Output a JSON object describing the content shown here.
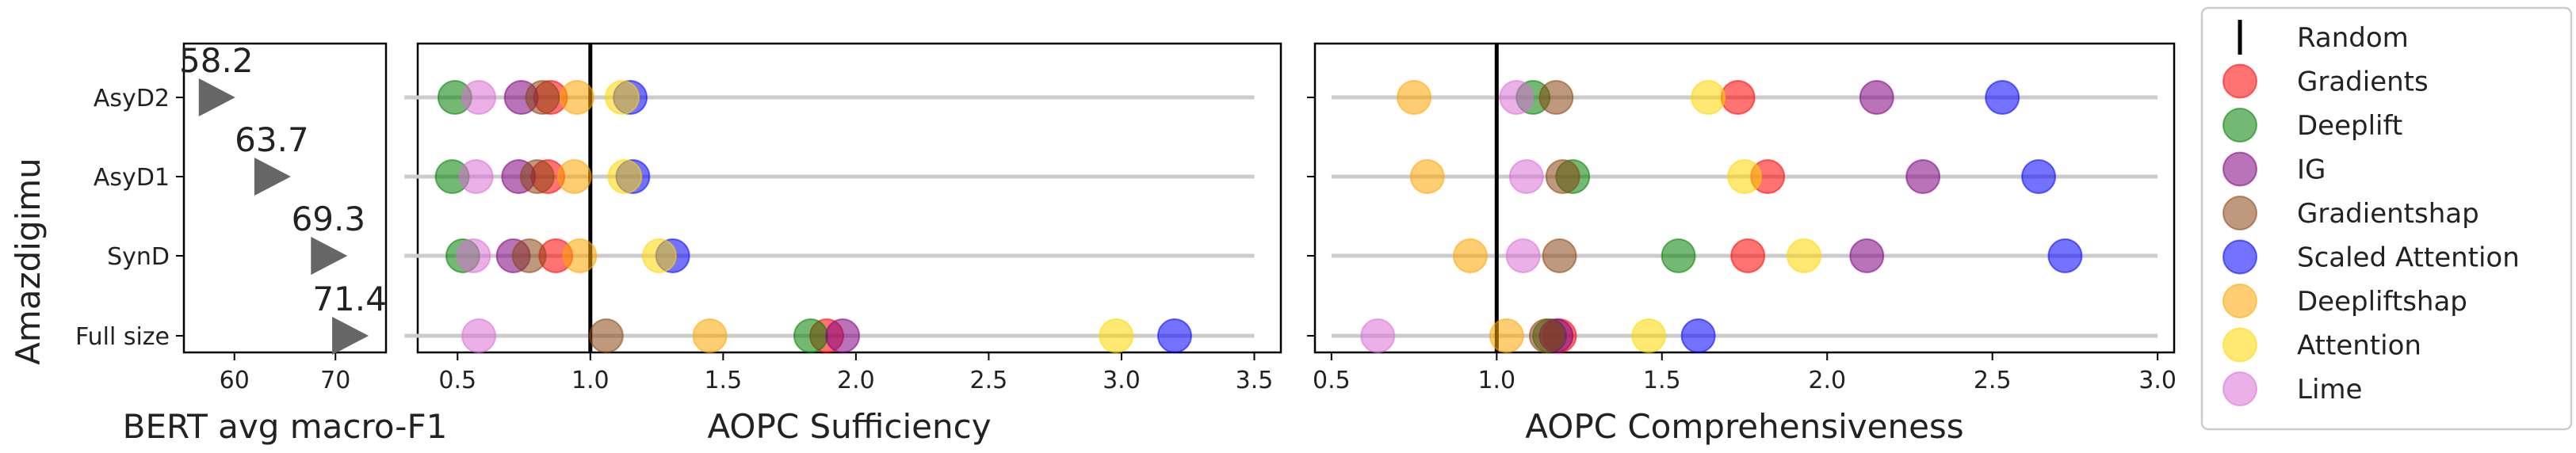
{
  "figure": {
    "y_title": "Amazdigimu"
  },
  "chart_data": [
    {
      "type": "scatter",
      "panel": "f1",
      "xlabel": "BERT avg macro-F1",
      "xlim": [
        55,
        75
      ],
      "xticks": [
        60,
        70
      ],
      "categories": [
        "AsyD2",
        "AsyD1",
        "SynD",
        "Full size"
      ],
      "values": [
        58.2,
        63.7,
        69.3,
        71.4
      ],
      "value_labels": [
        "58.2",
        "63.7",
        "69.3",
        "71.4"
      ],
      "marker_color": "#666666"
    },
    {
      "type": "scatter",
      "panel": "sufficiency",
      "xlabel": "AOPC Sufficiency",
      "xlim": [
        0.35,
        3.6
      ],
      "xticks": [
        0.5,
        1.0,
        1.5,
        2.0,
        2.5,
        3.0,
        3.5
      ],
      "xtick_labels": [
        "0.5",
        "1.0",
        "1.5",
        "2.0",
        "2.5",
        "3.0",
        "3.5"
      ],
      "range_line": [
        0.3,
        3.5
      ],
      "reference_x": 1.0,
      "categories": [
        "AsyD2",
        "AsyD1",
        "SynD",
        "Full size"
      ],
      "series": [
        {
          "name": "Gradients",
          "values": [
            0.85,
            0.84,
            0.87,
            1.89
          ]
        },
        {
          "name": "Deeplift",
          "values": [
            0.49,
            0.48,
            0.52,
            1.83
          ]
        },
        {
          "name": "IG",
          "values": [
            0.74,
            0.73,
            0.71,
            1.95
          ]
        },
        {
          "name": "Gradientshap",
          "values": [
            0.82,
            0.8,
            0.77,
            1.06
          ]
        },
        {
          "name": "Scaled Attention",
          "values": [
            1.15,
            1.16,
            1.31,
            3.2
          ]
        },
        {
          "name": "Deepliftshap",
          "values": [
            0.95,
            0.94,
            0.96,
            1.45
          ]
        },
        {
          "name": "Attention",
          "values": [
            1.12,
            1.13,
            1.26,
            2.98
          ]
        },
        {
          "name": "Lime",
          "values": [
            0.58,
            0.57,
            0.56,
            0.58
          ]
        }
      ]
    },
    {
      "type": "scatter",
      "panel": "comprehensiveness",
      "xlabel": "AOPC Comprehensiveness",
      "xlim": [
        0.45,
        3.05
      ],
      "xticks": [
        0.5,
        1.0,
        1.5,
        2.0,
        2.5,
        3.0
      ],
      "xtick_labels": [
        "0.5",
        "1.0",
        "1.5",
        "2.0",
        "2.5",
        "3.0"
      ],
      "range_line": [
        0.5,
        3.0
      ],
      "reference_x": 1.0,
      "categories": [
        "AsyD2",
        "AsyD1",
        "SynD",
        "Full size"
      ],
      "series": [
        {
          "name": "Gradients",
          "values": [
            1.73,
            1.82,
            1.76,
            1.19
          ]
        },
        {
          "name": "Deeplift",
          "values": [
            1.11,
            1.23,
            1.55,
            1.16
          ]
        },
        {
          "name": "IG",
          "values": [
            2.15,
            2.29,
            2.12,
            1.18
          ]
        },
        {
          "name": "Gradientshap",
          "values": [
            1.18,
            1.2,
            1.19,
            1.15
          ]
        },
        {
          "name": "Scaled Attention",
          "values": [
            2.53,
            2.64,
            2.72,
            1.61
          ]
        },
        {
          "name": "Deepliftshap",
          "values": [
            0.75,
            0.79,
            0.92,
            1.03
          ]
        },
        {
          "name": "Attention",
          "values": [
            1.64,
            1.75,
            1.93,
            1.46
          ]
        },
        {
          "name": "Lime",
          "values": [
            1.06,
            1.09,
            1.08,
            0.64
          ]
        }
      ]
    }
  ],
  "legend": {
    "placement": "right",
    "items": [
      {
        "name": "Random",
        "marker": "vline",
        "color": "#000000"
      },
      {
        "name": "Gradients",
        "marker": "circle",
        "color": "#ff0000"
      },
      {
        "name": "Deeplift",
        "marker": "circle",
        "color": "#008000"
      },
      {
        "name": "IG",
        "marker": "circle",
        "color": "#800080"
      },
      {
        "name": "Gradientshap",
        "marker": "circle",
        "color": "#8b4513"
      },
      {
        "name": "Scaled Attention",
        "marker": "circle",
        "color": "#0000ff"
      },
      {
        "name": "Deepliftshap",
        "marker": "circle",
        "color": "#ffa500"
      },
      {
        "name": "Attention",
        "marker": "circle",
        "color": "#ffd700"
      },
      {
        "name": "Lime",
        "marker": "circle",
        "color": "#da70d6"
      }
    ]
  }
}
